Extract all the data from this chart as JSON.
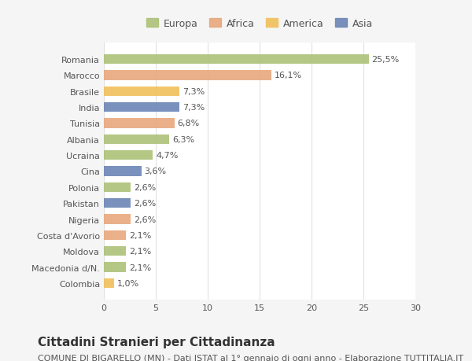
{
  "countries": [
    "Romania",
    "Marocco",
    "Brasile",
    "India",
    "Tunisia",
    "Albania",
    "Ucraina",
    "Cina",
    "Polonia",
    "Pakistan",
    "Nigeria",
    "Costa d'Avorio",
    "Moldova",
    "Macedonia d/N.",
    "Colombia"
  ],
  "values": [
    25.5,
    16.1,
    7.3,
    7.3,
    6.8,
    6.3,
    4.7,
    3.6,
    2.6,
    2.6,
    2.6,
    2.1,
    2.1,
    2.1,
    1.0
  ],
  "labels": [
    "25,5%",
    "16,1%",
    "7,3%",
    "7,3%",
    "6,8%",
    "6,3%",
    "4,7%",
    "3,6%",
    "2,6%",
    "2,6%",
    "2,6%",
    "2,1%",
    "2,1%",
    "2,1%",
    "1,0%"
  ],
  "categories": [
    "Europa",
    "Africa",
    "America",
    "Asia"
  ],
  "continent": [
    "Europa",
    "Africa",
    "America",
    "Asia",
    "Africa",
    "Europa",
    "Europa",
    "Asia",
    "Europa",
    "Asia",
    "Africa",
    "Africa",
    "Europa",
    "Europa",
    "America"
  ],
  "colors": {
    "Europa": "#adc178",
    "Africa": "#e8a87c",
    "America": "#f0c05a",
    "Asia": "#6b85b5"
  },
  "legend_colors": {
    "Europa": "#adc178",
    "Africa": "#e8a87c",
    "America": "#f0c05a",
    "Asia": "#6b85b5"
  },
  "background_color": "#f5f5f5",
  "bar_background": "#ffffff",
  "xlim": [
    0,
    30
  ],
  "xticks": [
    0,
    5,
    10,
    15,
    20,
    25,
    30
  ],
  "title": "Cittadini Stranieri per Cittadinanza",
  "subtitle": "COMUNE DI BIGARELLO (MN) - Dati ISTAT al 1° gennaio di ogni anno - Elaborazione TUTTITALIA.IT",
  "title_fontsize": 11,
  "subtitle_fontsize": 8,
  "label_fontsize": 8,
  "tick_fontsize": 8,
  "legend_fontsize": 9
}
